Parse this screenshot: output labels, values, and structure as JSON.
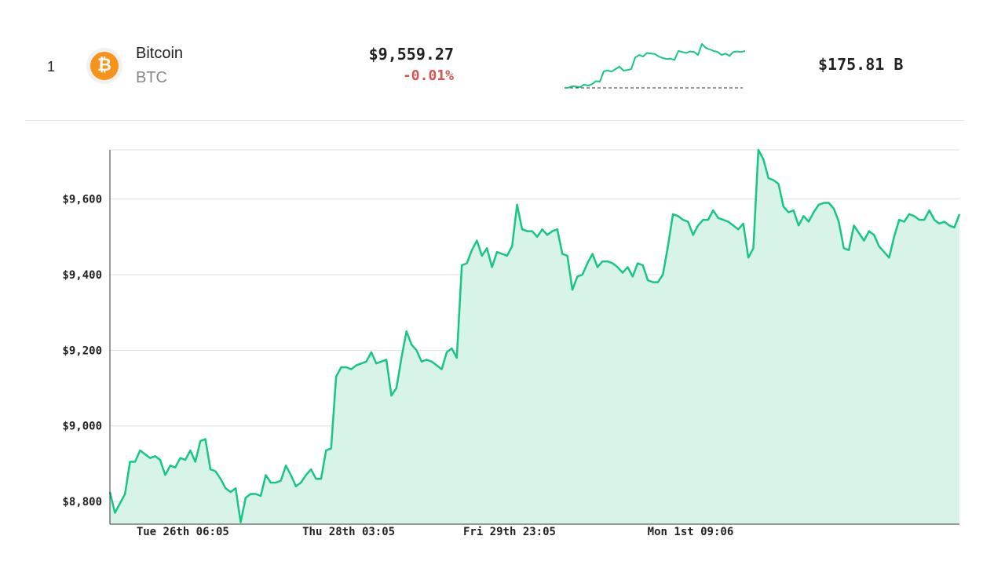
{
  "coin": {
    "rank": "1",
    "icon": "bitcoin-icon",
    "logo_glyph": "₿",
    "name": "Bitcoin",
    "symbol": "BTC",
    "price": "$9,559.27",
    "change": "-0.01%",
    "market_cap": "$175.81 B"
  },
  "colors": {
    "line": "#16c784",
    "fill": "#d8f3e7",
    "negative": "#d9534f",
    "logo": "#f7931a"
  },
  "chart_data": {
    "type": "area",
    "title": "",
    "xlabel": "",
    "ylabel": "",
    "ylim": [
      8740,
      9730
    ],
    "yticks": [
      8800,
      9000,
      9200,
      9400,
      9600
    ],
    "ytick_labels": [
      "$8,800",
      "$9,000",
      "$9,200",
      "$9,400",
      "$9,600"
    ],
    "xtick_labels": [
      "Tue 26th 06:05",
      "Thu 28th 03:05",
      "Fri 29th 23:05",
      "Mon 1st 09:06"
    ],
    "xtick_index": [
      14.5,
      47.5,
      79.5,
      115.5
    ],
    "grid": true,
    "series": [
      {
        "values": [
          8825,
          8770,
          8795,
          8820,
          8905,
          8905,
          8935,
          8925,
          8915,
          8920,
          8910,
          8870,
          8895,
          8890,
          8915,
          8910,
          8935,
          8905,
          8960,
          8965,
          8885,
          8880,
          8860,
          8835,
          8825,
          8835,
          8745,
          8810,
          8820,
          8820,
          8815,
          8870,
          8850,
          8850,
          8855,
          8895,
          8870,
          8840,
          8850,
          8870,
          8885,
          8860,
          8860,
          8935,
          8940,
          9130,
          9155,
          9155,
          9150,
          9160,
          9165,
          9170,
          9195,
          9165,
          9170,
          9175,
          9080,
          9100,
          9180,
          9250,
          9215,
          9200,
          9170,
          9175,
          9170,
          9160,
          9150,
          9195,
          9205,
          9180,
          9425,
          9430,
          9465,
          9490,
          9450,
          9470,
          9420,
          9460,
          9455,
          9450,
          9475,
          9585,
          9520,
          9515,
          9515,
          9500,
          9520,
          9505,
          9515,
          9520,
          9455,
          9450,
          9360,
          9395,
          9400,
          9430,
          9455,
          9420,
          9435,
          9435,
          9430,
          9420,
          9405,
          9420,
          9395,
          9430,
          9425,
          9385,
          9380,
          9380,
          9400,
          9475,
          9560,
          9555,
          9545,
          9540,
          9505,
          9530,
          9545,
          9545,
          9570,
          9550,
          9545,
          9540,
          9530,
          9520,
          9535,
          9445,
          9470,
          9730,
          9705,
          9655,
          9650,
          9640,
          9580,
          9565,
          9570,
          9530,
          9555,
          9540,
          9565,
          9585,
          9590,
          9590,
          9575,
          9540,
          9470,
          9465,
          9530,
          9510,
          9490,
          9515,
          9505,
          9475,
          9460,
          9445,
          9500,
          9545,
          9540,
          9560,
          9555,
          9545,
          9545,
          9570,
          9545,
          9535,
          9540,
          9530,
          9525,
          9560
        ]
      }
    ],
    "sparkline": {
      "values": [
        8825,
        8830,
        8860,
        8850,
        8840,
        8890,
        8870,
        8900,
        8960,
        8950,
        9155,
        9170,
        9150,
        9200,
        9250,
        9170,
        9180,
        9200,
        9430,
        9480,
        9450,
        9520,
        9510,
        9500,
        9450,
        9420,
        9400,
        9410,
        9380,
        9560,
        9540,
        9520,
        9550,
        9540,
        9480,
        9700,
        9620,
        9590,
        9560,
        9540,
        9480,
        9510,
        9460,
        9540,
        9550,
        9540,
        9560
      ],
      "baseline": 8825
    }
  }
}
